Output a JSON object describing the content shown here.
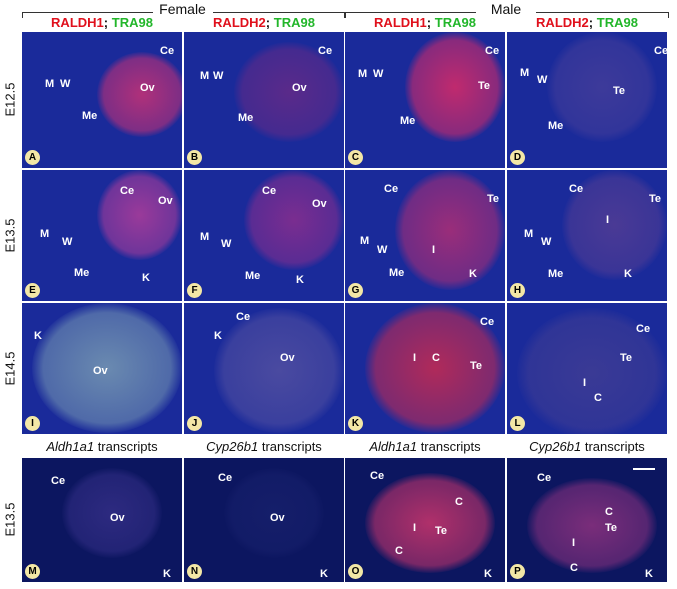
{
  "groups": [
    "Female",
    "Male"
  ],
  "stain_headers": [
    {
      "red": "RALDH1",
      "sep": ";",
      "green": "TRA98"
    },
    {
      "red": "RALDH2",
      "sep": ";",
      "green": "TRA98"
    },
    {
      "red": "RALDH1",
      "sep": ";",
      "green": "TRA98"
    },
    {
      "red": "RALDH2",
      "sep": ";",
      "green": "TRA98"
    }
  ],
  "transcript_headers": [
    {
      "gene": "Aldh1a1",
      "rest": "transcripts"
    },
    {
      "gene": "Cyp26b1",
      "rest": "transcripts"
    },
    {
      "gene": "Aldh1a1",
      "rest": "transcripts"
    },
    {
      "gene": "Cyp26b1",
      "rest": "transcripts"
    }
  ],
  "row_labels": [
    "E12.5",
    "E13.5",
    "E14.5",
    "E13.5"
  ],
  "panels": [
    {
      "letter": "A",
      "labels": [
        "Ce",
        "M",
        "W",
        "Me",
        "Ov"
      ]
    },
    {
      "letter": "B",
      "labels": [
        "Ce",
        "M",
        "W",
        "Me",
        "Ov"
      ]
    },
    {
      "letter": "C",
      "labels": [
        "Ce",
        "M",
        "W",
        "Te",
        "Me"
      ]
    },
    {
      "letter": "D",
      "labels": [
        "Ce",
        "M",
        "W",
        "Te",
        "Me"
      ]
    },
    {
      "letter": "E",
      "labels": [
        "Ce",
        "Ov",
        "M",
        "W",
        "Me",
        "K"
      ]
    },
    {
      "letter": "F",
      "labels": [
        "Ce",
        "Ov",
        "M",
        "W",
        "Me",
        "K"
      ]
    },
    {
      "letter": "G",
      "labels": [
        "Ce",
        "Te",
        "I",
        "M",
        "W",
        "Me",
        "K"
      ]
    },
    {
      "letter": "H",
      "labels": [
        "Ce",
        "Te",
        "I",
        "M",
        "W",
        "Me",
        "K"
      ]
    },
    {
      "letter": "I",
      "labels": [
        "K",
        "Ov"
      ]
    },
    {
      "letter": "J",
      "labels": [
        "K",
        "Ce",
        "Ov"
      ]
    },
    {
      "letter": "K",
      "labels": [
        "Ce",
        "I",
        "C",
        "Te"
      ]
    },
    {
      "letter": "L",
      "labels": [
        "Ce",
        "Te",
        "I",
        "C"
      ]
    },
    {
      "letter": "M",
      "labels": [
        "Ce",
        "Ov",
        "K"
      ]
    },
    {
      "letter": "N",
      "labels": [
        "Ce",
        "Ov",
        "K"
      ]
    },
    {
      "letter": "O",
      "labels": [
        "Ce",
        "C",
        "Te",
        "I",
        "C",
        "K"
      ]
    },
    {
      "letter": "P",
      "labels": [
        "Ce",
        "C",
        "Te",
        "I",
        "C",
        "K"
      ]
    }
  ]
}
